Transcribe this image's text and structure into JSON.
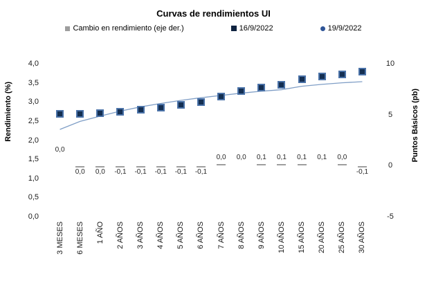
{
  "title": "Curvas de rendimientos UI",
  "legend": {
    "items": [
      {
        "label": "Cambio en rendimiento (eje der.)",
        "marker": "gray-square"
      },
      {
        "label": "16/9/2022",
        "marker": "navy-square"
      },
      {
        "label": "19/9/2022",
        "marker": "blue-dot"
      }
    ]
  },
  "left_axis": {
    "title": "Rendimiento (%)",
    "ticks": [
      "4,0",
      "3,5",
      "3,0",
      "2,5",
      "2,0",
      "1,5",
      "1,0",
      "0,5",
      "0,0"
    ],
    "min": 0.0,
    "max": 4.0
  },
  "right_axis": {
    "title": "Puntos Básicos (pb)",
    "ticks": [
      "10",
      "5",
      "0",
      "-5"
    ],
    "min": -5,
    "max": 10
  },
  "colors": {
    "squares_fill": "#142f52",
    "squares_border": "#4a72a8",
    "line": "#7f9ec6",
    "change_bar": "#9e9e9e",
    "legend_navy": "#0f2340",
    "legend_blue_dot": "#2f5597"
  },
  "chart_data": {
    "type": "combo",
    "title": "Curvas de rendimientos UI",
    "categories": [
      "3 MESES",
      "6 MESES",
      "1 AÑO",
      "2 AÑOS",
      "3 AÑOS",
      "4 AÑOS",
      "5 AÑOS",
      "6 AÑOS",
      "7 AÑOS",
      "8 AÑOS",
      "9 AÑOS",
      "10 AÑOS",
      "15 AÑOS",
      "20 AÑOS",
      "25 AÑOS",
      "30 AÑOS"
    ],
    "ylim_left": [
      0.0,
      4.0
    ],
    "ylim_right": [
      -5,
      10
    ],
    "grid": false,
    "legend_position": "top",
    "series": [
      {
        "name": "Cambio en rendimiento (eje der.)",
        "type": "bar",
        "axis": "right",
        "unit": "pb",
        "values": [
          0.0,
          0.0,
          0.0,
          -0.1,
          -0.1,
          -0.1,
          -0.1,
          -0.1,
          0.0,
          0.0,
          0.1,
          0.1,
          0.1,
          0.1,
          0.0,
          -0.1
        ],
        "labels": [
          "0,0",
          "0,0",
          "0,0",
          "-0,1",
          "-0,1",
          "-0,1",
          "-0,1",
          "-0,1",
          "0,0",
          "0,0",
          "0,1",
          "0,1",
          "0,1",
          "0,1",
          "0,0",
          "-0,1"
        ],
        "label_pos": [
          "high",
          "below",
          "below",
          "below",
          "below",
          "below",
          "below",
          "below",
          "above",
          "above",
          "above",
          "above",
          "above",
          "above",
          "above",
          "below"
        ],
        "dash": [
          false,
          true,
          true,
          true,
          true,
          true,
          true,
          true,
          true,
          false,
          true,
          true,
          true,
          false,
          true,
          true
        ]
      },
      {
        "name": "16/9/2022",
        "type": "scatter-square",
        "axis": "left",
        "unit": "%",
        "values": [
          2.68,
          2.69,
          2.71,
          2.74,
          2.79,
          2.85,
          2.92,
          3.0,
          3.14,
          3.28,
          3.38,
          3.45,
          3.6,
          3.66,
          3.72,
          3.8
        ]
      },
      {
        "name": "19/9/2022",
        "type": "line",
        "axis": "left",
        "unit": "%",
        "values": [
          2.28,
          2.49,
          2.63,
          2.76,
          2.87,
          2.96,
          3.04,
          3.11,
          3.17,
          3.23,
          3.28,
          3.32,
          3.41,
          3.46,
          3.5,
          3.53
        ]
      }
    ]
  }
}
